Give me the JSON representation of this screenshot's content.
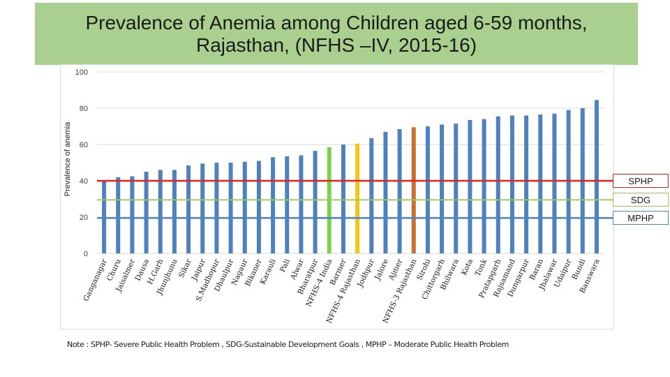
{
  "title": {
    "line1": "Prevalence of Anemia among Children aged 6-59 months,",
    "line2": "Rajasthan, (NFHS –IV, 2015-16)"
  },
  "note": "Note : SPHP- Severe Public Health Problem , SDG-Sustainable Development Goals , MPHP – Moderate Public Health Problem",
  "chart_data": {
    "type": "bar",
    "title": "Prevalence of Anemia among Children aged 6-59 months, Rajasthan, (NFHS –IV, 2015-16)",
    "xlabel": "",
    "ylabel": "Prevalence of anemia",
    "ylim": [
      0,
      100
    ],
    "yticks": [
      "0",
      "20",
      "40",
      "60",
      "80",
      "100"
    ],
    "grid": true,
    "categories": [
      "Ganganagar",
      "Churu",
      "Jaisalmer",
      "Dausa",
      "H.Garh",
      "Jhunjhunu",
      "Sikar",
      "Jaipur",
      "S.Madhopur",
      "Dhaulpur",
      "Nagaur",
      "Bikaner",
      "Karauli",
      "Pali",
      "Alwar",
      "Bharatpur",
      "NFHS-4 India",
      "Barmer",
      "NFHS-4 Rajasthan",
      "Jodhpur",
      "Jalore",
      "Ajmer",
      "NFHS-3 Rajasthan",
      "Sirohi",
      "Chittorgarh",
      "Bhilwara",
      "Kota",
      "Tonk",
      "Pratapgarh",
      "Rajsamand",
      "Dungarpur",
      "Baran",
      "Jhalawar",
      "Udaipur",
      "Bundi",
      "Banswara"
    ],
    "values": [
      40,
      42,
      42.5,
      45,
      46,
      46,
      48.5,
      49.5,
      50,
      50,
      50.5,
      51,
      53,
      53.5,
      54,
      56.5,
      58.5,
      60,
      60.5,
      63.5,
      67,
      68.5,
      69.5,
      70,
      71,
      71.5,
      73.5,
      74,
      75.5,
      76,
      76,
      76.5,
      77,
      79,
      80,
      84.5
    ],
    "bar_colors": {
      "default": "#4f81bd",
      "NFHS-4 India": "#7ed04e",
      "NFHS-4 Rajasthan": "#f5c518",
      "NFHS-3 Rajasthan": "#c87032"
    },
    "reference_lines": [
      {
        "label": "SPHP",
        "value": 40,
        "color": "#e8221b"
      },
      {
        "label": "SDG",
        "value": 29.5,
        "color": "#92d050"
      },
      {
        "label": "MPHP",
        "value": 19.5,
        "color": "#4a86c8"
      }
    ],
    "axis_color": "#d9d9d9"
  }
}
